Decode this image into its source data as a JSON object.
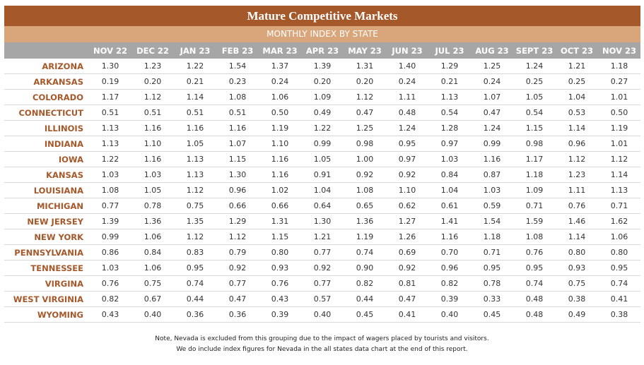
{
  "header": {
    "title": "Mature Competitive Markets",
    "subtitle": "MONTHLY INDEX BY STATE"
  },
  "table": {
    "columns": [
      "NOV 22",
      "DEC 22",
      "JAN 23",
      "FEB 23",
      "MAR 23",
      "APR 23",
      "MAY 23",
      "JUN 23",
      "JUL 23",
      "AUG 23",
      "SEPT 23",
      "OCT 23",
      "NOV 23"
    ],
    "rows": [
      {
        "state": "ARIZONA",
        "cells": [
          "1.30",
          "1.23",
          "1.22",
          "1.54",
          "1.37",
          "1.39",
          "1.31",
          "1.40",
          "1.29",
          "1.25",
          "1.24",
          "1.21",
          "1.18"
        ]
      },
      {
        "state": "ARKANSAS",
        "cells": [
          "0.19",
          "0.20",
          "0.21",
          "0.23",
          "0.24",
          "0.20",
          "0.20",
          "0.24",
          "0.21",
          "0.24",
          "0.25",
          "0.25",
          "0.27"
        ]
      },
      {
        "state": "COLORADO",
        "cells": [
          "1.17",
          "1.12",
          "1.14",
          "1.08",
          "1.06",
          "1.09",
          "1.12",
          "1.11",
          "1.13",
          "1.07",
          "1.05",
          "1.04",
          "1.01"
        ]
      },
      {
        "state": "CONNECTICUT",
        "cells": [
          "0.51",
          "0.51",
          "0.51",
          "0.51",
          "0.50",
          "0.49",
          "0.47",
          "0.48",
          "0.54",
          "0.47",
          "0.54",
          "0.53",
          "0.50"
        ]
      },
      {
        "state": "ILLINOIS",
        "cells": [
          "1.13",
          "1.16",
          "1.16",
          "1.16",
          "1.19",
          "1.22",
          "1.25",
          "1.24",
          "1.28",
          "1.24",
          "1.15",
          "1.14",
          "1.19"
        ]
      },
      {
        "state": "INDIANA",
        "cells": [
          "1.13",
          "1.10",
          "1.05",
          "1.07",
          "1.10",
          "0.99",
          "0.98",
          "0.95",
          "0.97",
          "0.99",
          "0.98",
          "0.96",
          "1.01"
        ]
      },
      {
        "state": "IOWA",
        "cells": [
          "1.22",
          "1.16",
          "1.13",
          "1.15",
          "1.16",
          "1.05",
          "1.00",
          "0.97",
          "1.03",
          "1.16",
          "1.17",
          "1.12",
          "1.12"
        ]
      },
      {
        "state": "KANSAS",
        "cells": [
          "1.03",
          "1.03",
          "1.13",
          "1.30",
          "1.16",
          "0.91",
          "0.92",
          "0.92",
          "0.84",
          "0.87",
          "1.18",
          "1.23",
          "1.14"
        ]
      },
      {
        "state": "LOUISIANA",
        "cells": [
          "1.08",
          "1.05",
          "1.12",
          "0.96",
          "1.02",
          "1.04",
          "1.08",
          "1.10",
          "1.04",
          "1.03",
          "1.09",
          "1.11",
          "1.13"
        ]
      },
      {
        "state": "MICHIGAN",
        "cells": [
          "0.77",
          "0.78",
          "0.75",
          "0.66",
          "0.66",
          "0.64",
          "0.65",
          "0.62",
          "0.61",
          "0.59",
          "0.71",
          "0.76",
          "0.71"
        ]
      },
      {
        "state": "NEW JERSEY",
        "cells": [
          "1.39",
          "1.36",
          "1.35",
          "1.29",
          "1.31",
          "1.30",
          "1.36",
          "1.27",
          "1.41",
          "1.54",
          "1.59",
          "1.46",
          "1.62"
        ]
      },
      {
        "state": "NEW YORK",
        "cells": [
          "0.99",
          "1.06",
          "1.12",
          "1.12",
          "1.15",
          "1.21",
          "1.19",
          "1.26",
          "1.16",
          "1.18",
          "1.08",
          "1.14",
          "1.06"
        ]
      },
      {
        "state": "PENNSYLVANIA",
        "cells": [
          "0.86",
          "0.84",
          "0.83",
          "0.79",
          "0.80",
          "0.77",
          "0.74",
          "0.69",
          "0.70",
          "0.71",
          "0.76",
          "0.80",
          "0.80"
        ]
      },
      {
        "state": "TENNESSEE",
        "cells": [
          "1.03",
          "1.06",
          "0.95",
          "0.92",
          "0.93",
          "0.92",
          "0.90",
          "0.92",
          "0.96",
          "0.95",
          "0.95",
          "0.93",
          "0.95"
        ]
      },
      {
        "state": "VIRGINA",
        "cells": [
          "0.76",
          "0.75",
          "0.74",
          "0.77",
          "0.76",
          "0.77",
          "0.82",
          "0.81",
          "0.82",
          "0.78",
          "0.74",
          "0.75",
          "0.74"
        ]
      },
      {
        "state": "WEST VIRGINIA",
        "cells": [
          "0.82",
          "0.67",
          "0.44",
          "0.47",
          "0.43",
          "0.57",
          "0.44",
          "0.47",
          "0.39",
          "0.33",
          "0.48",
          "0.38",
          "0.41"
        ]
      },
      {
        "state": "WYOMING",
        "cells": [
          "0.43",
          "0.40",
          "0.36",
          "0.36",
          "0.39",
          "0.40",
          "0.45",
          "0.41",
          "0.40",
          "0.45",
          "0.48",
          "0.49",
          "0.38"
        ]
      }
    ]
  },
  "notes": [
    "Note, Nevada is excluded from this grouping due to the impact of wagers placed by tourists and visitors.",
    "We do include index figures for Nevada in the all states data chart at the end of this report."
  ]
}
